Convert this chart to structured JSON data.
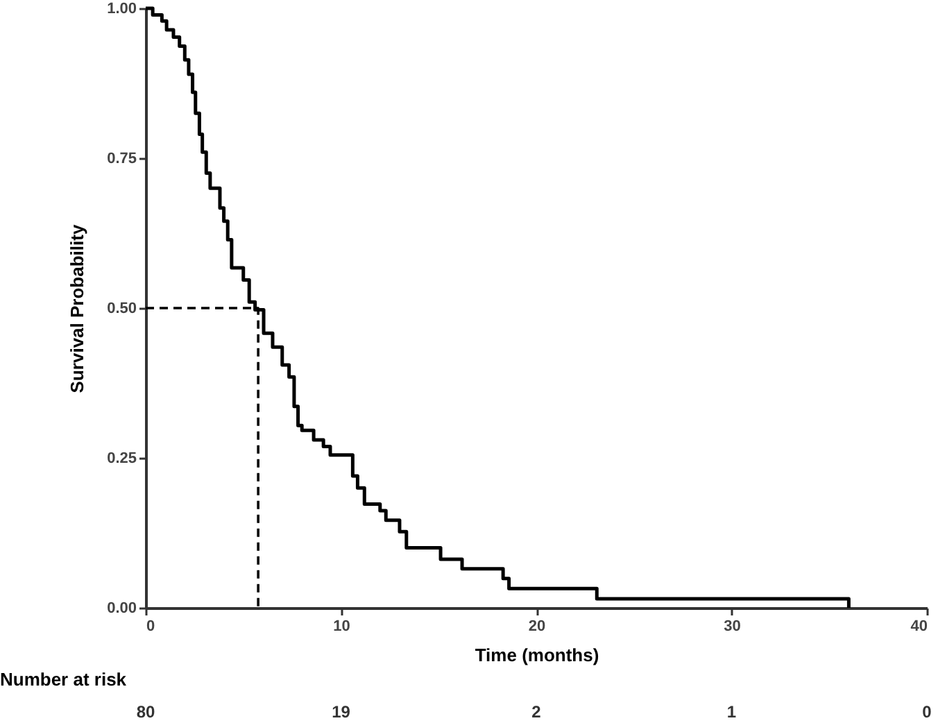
{
  "chart_data": {
    "type": "step",
    "xlabel": "Time (months)",
    "ylabel": "Survival Probability",
    "xlim": [
      0,
      40
    ],
    "ylim": [
      0,
      1
    ],
    "xticks": [
      0,
      10,
      20,
      30,
      40
    ],
    "yticks": [
      {
        "value": 0,
        "label": "0.00"
      },
      {
        "value": 0.25,
        "label": "0.25"
      },
      {
        "value": 0.5,
        "label": "0.50"
      },
      {
        "value": 0.75,
        "label": "0.75"
      },
      {
        "value": 1,
        "label": "1.00"
      }
    ],
    "grid": false,
    "marker": "none",
    "series": [
      {
        "color": "#000000",
        "line_style": "solid",
        "x": [
          0,
          0.36,
          0.83,
          1.07,
          1.42,
          1.73,
          2.0,
          2.2,
          2.4,
          2.55,
          2.75,
          2.9,
          3.1,
          3.3,
          3.8,
          4.0,
          4.2,
          4.4,
          5.0,
          5.3,
          5.6,
          6.04,
          6.5,
          6.99,
          7.34,
          7.6,
          7.8,
          8.0,
          8.6,
          9.1,
          9.45,
          10.6,
          10.85,
          11.2,
          12.0,
          12.3,
          13.0,
          13.35,
          15.1,
          16.2,
          18.3,
          18.6,
          23.1,
          36.0
        ],
        "values": [
          1.0,
          0.989,
          0.979,
          0.964,
          0.952,
          0.937,
          0.914,
          0.89,
          0.86,
          0.825,
          0.79,
          0.76,
          0.725,
          0.7,
          0.667,
          0.645,
          0.614,
          0.567,
          0.547,
          0.51,
          0.497,
          0.458,
          0.435,
          0.405,
          0.385,
          0.336,
          0.304,
          0.296,
          0.28,
          0.269,
          0.255,
          0.22,
          0.2,
          0.173,
          0.162,
          0.146,
          0.127,
          0.1,
          0.081,
          0.065,
          0.049,
          0.032,
          0.015,
          0.0
        ]
      },
      {
        "type": "line",
        "color": "#000000",
        "line_style": "dashed",
        "x": [
          0,
          5.76,
          5.76
        ],
        "values": [
          0.5,
          0.5,
          0
        ]
      }
    ],
    "annotations": [
      "Number at risk",
      "80",
      "19",
      "2",
      "1",
      "0"
    ]
  }
}
